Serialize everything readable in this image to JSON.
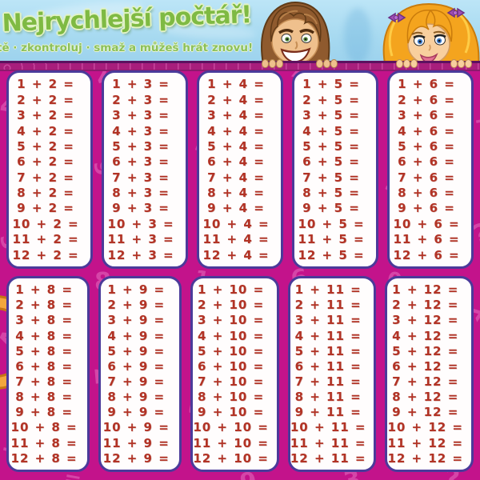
{
  "header": {
    "title": "Nejrychlejší počtář!",
    "subtitle": "tě · zkontroluj · smaž a můžeš hrát znovu!"
  },
  "decor": {
    "boy_character": "boy-peeking-over-board",
    "girl_character": "girl-peeking-over-board",
    "orange_ring_color": "#f3a63d",
    "board_color": "#c3138b",
    "bar_color": "#a81e7c",
    "sky_color": "#a6d9f0",
    "title_color": "#7fba43",
    "card_border_color": "#4b3a9a",
    "card_bg_color": "#fffdfd",
    "equation_color": "#b23325",
    "pattern_glyphs": "2 7 4 + 9 = 3 ? 5 8 1 6 0 x A Z"
  },
  "cards": [
    {
      "name": "plus-2",
      "rows": [
        "1 + 2 =",
        "2 + 2 =",
        "3 + 2 =",
        "4 + 2 =",
        "5 + 2 =",
        "6 + 2 =",
        "7 + 2 =",
        "8 + 2 =",
        "9 + 2 =",
        "10 + 2 =",
        "11 + 2 =",
        "12 + 2 ="
      ]
    },
    {
      "name": "plus-3",
      "rows": [
        "1 + 3 =",
        "2 + 3 =",
        "3 + 3 =",
        "4 + 3 =",
        "5 + 3 =",
        "6 + 3 =",
        "7 + 3 =",
        "8 + 3 =",
        "9 + 3 =",
        "10 + 3 =",
        "11 + 3 =",
        "12 + 3 ="
      ]
    },
    {
      "name": "plus-4",
      "rows": [
        "1 + 4 =",
        "2 + 4 =",
        "3 + 4 =",
        "4 + 4 =",
        "5 + 4 =",
        "6 + 4 =",
        "7 + 4 =",
        "8 + 4 =",
        "9 + 4 =",
        "10 + 4 =",
        "11 + 4 =",
        "12 + 4 ="
      ]
    },
    {
      "name": "plus-5",
      "rows": [
        "1 + 5 =",
        "2 + 5 =",
        "3 + 5 =",
        "4 + 5 =",
        "5 + 5 =",
        "6 + 5 =",
        "7 + 5 =",
        "8 + 5 =",
        "9 + 5 =",
        "10 + 5 =",
        "11 + 5 =",
        "12 + 5 ="
      ]
    },
    {
      "name": "plus-6",
      "rows": [
        "1 + 6 =",
        "2 + 6 =",
        "3 + 6 =",
        "4 + 6 =",
        "5 + 6 =",
        "6 + 6 =",
        "7 + 6 =",
        "8 + 6 =",
        "9 + 6 =",
        "10 + 6 =",
        "11 + 6 =",
        "12 + 6 ="
      ]
    },
    {
      "name": "plus-8",
      "rows": [
        "1 + 8 =",
        "2 + 8 =",
        "3 + 8 =",
        "4 + 8 =",
        "5 + 8 =",
        "6 + 8 =",
        "7 + 8 =",
        "8 + 8 =",
        "9 + 8 =",
        "10 + 8 =",
        "11 + 8 =",
        "12 + 8 ="
      ]
    },
    {
      "name": "plus-9",
      "rows": [
        "1 + 9 =",
        "2 + 9 =",
        "3 + 9 =",
        "4 + 9 =",
        "5 + 9 =",
        "6 + 9 =",
        "7 + 9 =",
        "8 + 9 =",
        "9 + 9 =",
        "10 + 9 =",
        "11 + 9 =",
        "12 + 9 ="
      ]
    },
    {
      "name": "plus-10",
      "rows": [
        "1 + 10 =",
        "2 + 10 =",
        "3 + 10 =",
        "4 + 10 =",
        "5 + 10 =",
        "6 + 10 =",
        "7 + 10 =",
        "8 + 10 =",
        "9 + 10 =",
        "10 + 10 =",
        "11 + 10 =",
        "12 + 10 ="
      ]
    },
    {
      "name": "plus-11",
      "rows": [
        "1 + 11 =",
        "2 + 11 =",
        "3 + 11 =",
        "4 + 11 =",
        "5 + 11 =",
        "6 + 11 =",
        "7 + 11 =",
        "8 + 11 =",
        "9 + 11 =",
        "10 + 11 =",
        "11 + 11 =",
        "12 + 11 ="
      ]
    },
    {
      "name": "plus-12",
      "rows": [
        "1 + 12 =",
        "2 + 12 =",
        "3 + 12 =",
        "4 + 12 =",
        "5 + 12 =",
        "6 + 12 =",
        "7 + 12 =",
        "8 + 12 =",
        "9 + 12 =",
        "10 + 12 =",
        "11 + 12 =",
        "12 + 12 ="
      ]
    }
  ]
}
